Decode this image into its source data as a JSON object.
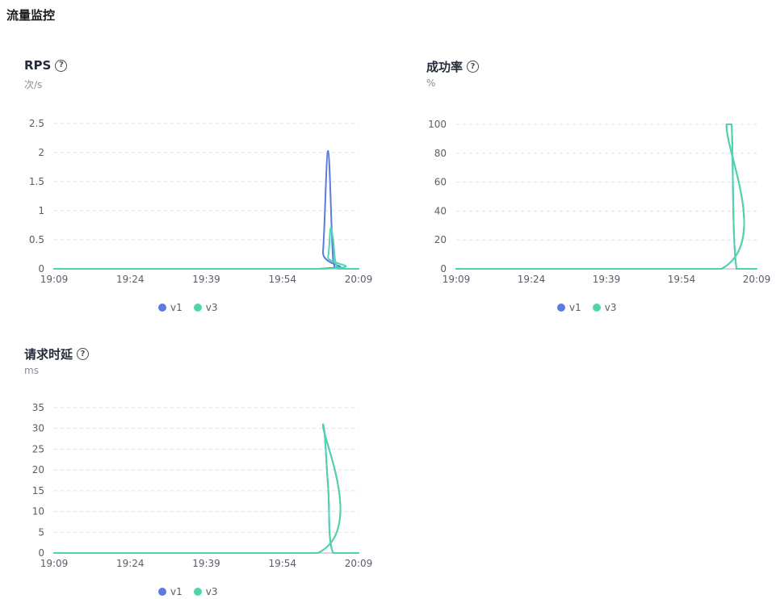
{
  "page": {
    "title": "流量监控"
  },
  "colors": {
    "v1": "#5b7be0",
    "v3": "#50d4ab",
    "grid": "#dfe1e6",
    "axis": "#adb0b8"
  },
  "panels": [
    {
      "title": "RPS",
      "unit": "次/s",
      "legend": [
        "v1",
        "v3"
      ]
    },
    {
      "title": "成功率",
      "unit": "%",
      "legend": [
        "v1",
        "v3"
      ]
    },
    {
      "title": "请求时延",
      "unit": "ms",
      "legend": [
        "v1",
        "v3"
      ]
    }
  ],
  "chart_data": [
    {
      "type": "line",
      "title": "RPS",
      "ylabel": "次/s",
      "x_ticks": [
        "19:09",
        "19:24",
        "19:39",
        "19:54",
        "20:09"
      ],
      "xlim": [
        "19:09",
        "20:09"
      ],
      "ylim": [
        0,
        2.5
      ],
      "y_ticks": [
        "0",
        "0.5",
        "1",
        "1.5",
        "2",
        "2.5"
      ],
      "grid": true,
      "legend_position": "bottom-center",
      "series": [
        {
          "name": "v1",
          "x": [
            "19:09",
            "20:01",
            "20:02",
            "20:03",
            "20:04",
            "20:05",
            "20:09"
          ],
          "values": [
            0,
            0,
            0.3,
            2.03,
            0.15,
            0,
            0
          ]
        },
        {
          "name": "v3",
          "x": [
            "19:09",
            "20:02",
            "20:03",
            "20:03.5",
            "20:04",
            "20:05",
            "20:09"
          ],
          "values": [
            0,
            0,
            0.2,
            0.7,
            0.5,
            0,
            0
          ]
        }
      ]
    },
    {
      "type": "line",
      "title": "成功率",
      "ylabel": "%",
      "x_ticks": [
        "19:09",
        "19:24",
        "19:39",
        "19:54",
        "20:09"
      ],
      "xlim": [
        "19:09",
        "20:09"
      ],
      "ylim": [
        0,
        100
      ],
      "y_ticks": [
        "0",
        "20",
        "40",
        "60",
        "80",
        "100"
      ],
      "grid": true,
      "legend_position": "bottom-center",
      "series": [
        {
          "name": "v1",
          "x": [
            "19:09",
            "20:02",
            "20:03",
            "20:04",
            "20:05",
            "20:09"
          ],
          "values": [
            0,
            0,
            100,
            100,
            0,
            0
          ]
        },
        {
          "name": "v3",
          "x": [
            "19:09",
            "20:02",
            "20:03",
            "20:04",
            "20:05",
            "20:09"
          ],
          "values": [
            0,
            0,
            100,
            100,
            0,
            0
          ]
        }
      ]
    },
    {
      "type": "line",
      "title": "请求时延",
      "ylabel": "ms",
      "x_ticks": [
        "19:09",
        "19:24",
        "19:39",
        "19:54",
        "20:09"
      ],
      "xlim": [
        "19:09",
        "20:09"
      ],
      "ylim": [
        0,
        35
      ],
      "y_ticks": [
        "0",
        "5",
        "10",
        "15",
        "20",
        "25",
        "30",
        "35"
      ],
      "grid": true,
      "legend_position": "bottom-center",
      "series": [
        {
          "name": "v1",
          "x": [
            "19:09",
            "20:01",
            "20:02",
            "20:03",
            "20:04",
            "20:09"
          ],
          "values": [
            0,
            0,
            31,
            16,
            0,
            0
          ]
        },
        {
          "name": "v3",
          "x": [
            "19:09",
            "20:01",
            "20:02",
            "20:03",
            "20:04",
            "20:09"
          ],
          "values": [
            0,
            0,
            31,
            16,
            0,
            0
          ]
        }
      ]
    }
  ]
}
